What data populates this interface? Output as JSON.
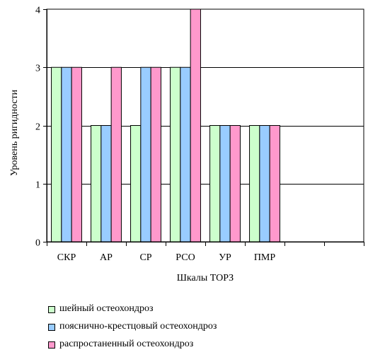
{
  "chart_data": {
    "type": "bar",
    "xlabel": "Шкалы ТОРЗ",
    "ylabel": "Уровень ригидности",
    "categories": [
      "СКР",
      "АР",
      "СР",
      "РСО",
      "УР",
      "ПМР"
    ],
    "empty_category_slots": 2,
    "ylim": [
      0,
      4
    ],
    "yticks": [
      "0",
      "1",
      "2",
      "3",
      "4"
    ],
    "grid": true,
    "legend_position": "bottom",
    "series": [
      {
        "name": "шейный остеохондроз",
        "color": "#ccffcc",
        "values": [
          3,
          2,
          2,
          3,
          2,
          2
        ]
      },
      {
        "name": "пояснично-крестцовый остеохондроз",
        "color": "#99ccff",
        "values": [
          3,
          2,
          3,
          3,
          2,
          2
        ]
      },
      {
        "name": "распростаненный остеохондроз",
        "color": "#ff99cc",
        "values": [
          3,
          3,
          3,
          4,
          2,
          2
        ]
      }
    ]
  }
}
